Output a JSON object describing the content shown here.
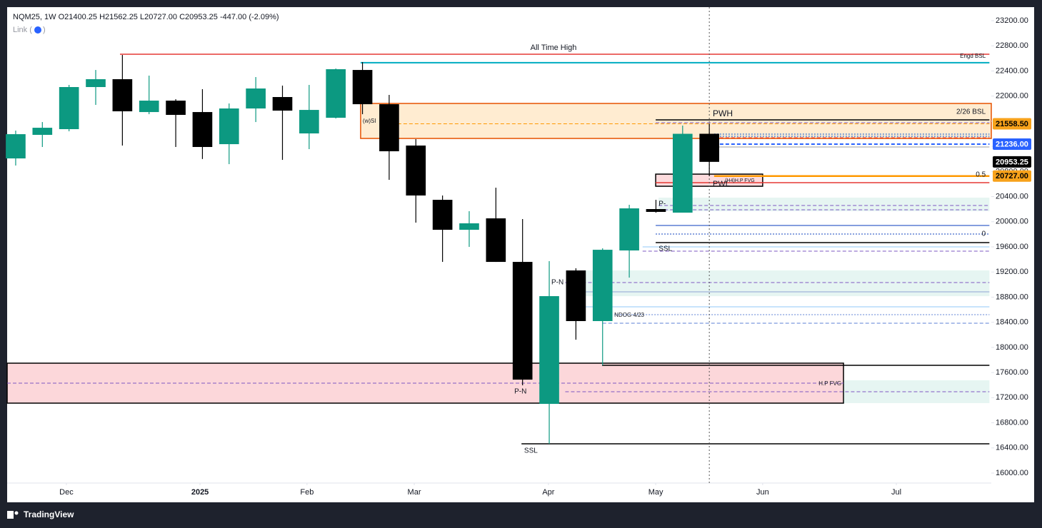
{
  "header": {
    "symbol": "NQM25, 1W",
    "ohlc": [
      {
        "key": "O",
        "value": "21400.25"
      },
      {
        "key": "H",
        "value": "21562.25"
      },
      {
        "key": "L",
        "value": "20727.00"
      },
      {
        "key": "C",
        "value": "20953.25"
      }
    ],
    "change": "-447.00 (-2.09%)",
    "link": "Link (",
    "link_end": ")"
  },
  "footer": {
    "brand": "TradingView"
  },
  "chart_data": {
    "type": "candlestick",
    "up_color": "#0c9981",
    "down_color": "#000000",
    "x": [
      0,
      1,
      2,
      3,
      4,
      5,
      6,
      7,
      8,
      9,
      10,
      11,
      12,
      13,
      14,
      15,
      16,
      17,
      18,
      19,
      20,
      21,
      22,
      23,
      24,
      25,
      26
    ],
    "open": [
      21008,
      21383,
      21474,
      22144,
      22269,
      21746,
      21928,
      21746,
      21235,
      21803,
      21985,
      21406,
      21655,
      22416,
      21871,
      21213,
      20349,
      19872,
      20054,
      19361,
      17101,
      19225,
      18419,
      19543,
      20202,
      20145,
      21400.25
    ],
    "high": [
      21451,
      21587,
      22178,
      22416,
      22655,
      22326,
      21951,
      22110,
      21883,
      22303,
      22167,
      22178,
      22439,
      22541,
      22019,
      21315,
      20418,
      20168,
      20542,
      20043,
      19373,
      19259,
      19577,
      20270,
      20349,
      21531,
      21562.25
    ],
    "low": [
      20895,
      21190,
      21440,
      21860,
      21213,
      21712,
      21190,
      20999,
      20917,
      21587,
      20985,
      21156,
      21644,
      21712,
      20667,
      19986,
      19361,
      19600,
      19361,
      17397,
      16465,
      18123,
      17715,
      19111,
      20145,
      20145,
      20727
    ],
    "close": [
      21394,
      21496,
      22144,
      22269,
      21758,
      21928,
      21701,
      21190,
      21803,
      22121,
      21769,
      21780,
      22428,
      21871,
      21122,
      20418,
      19872,
      19975,
      19361,
      17487,
      18816,
      18419,
      19554,
      20213,
      20157,
      21400,
      20953.25
    ],
    "xlim": [
      -0.32,
      36.57
    ],
    "xticks": [
      {
        "value": 1.9,
        "label": "Dec"
      },
      {
        "value": 6.91,
        "label": "2025"
      },
      {
        "value": 10.92,
        "label": "Feb"
      },
      {
        "value": 14.94,
        "label": "Mar"
      },
      {
        "value": 19.97,
        "label": "Apr"
      },
      {
        "value": 23.99,
        "label": "May"
      },
      {
        "value": 28.0,
        "label": "Jun"
      },
      {
        "value": 33.01,
        "label": "Jul"
      }
    ],
    "ylim": [
      15841,
      23416
    ],
    "yticks": [
      {
        "value": 16000,
        "label": "16000.00"
      },
      {
        "value": 16400,
        "label": "16400.00"
      },
      {
        "value": 16800,
        "label": "16800.00"
      },
      {
        "value": 17200,
        "label": "17200.00"
      },
      {
        "value": 17600,
        "label": "17600.00"
      },
      {
        "value": 18000,
        "label": "18000.00"
      },
      {
        "value": 18400,
        "label": "18400.00"
      },
      {
        "value": 18800,
        "label": "18800.00"
      },
      {
        "value": 19200,
        "label": "19200.00"
      },
      {
        "value": 19600,
        "label": "19600.00"
      },
      {
        "value": 20000,
        "label": "20000.00"
      },
      {
        "value": 20400,
        "label": "20400.00"
      },
      {
        "value": 20800,
        "label": "20800.00"
      },
      {
        "value": 21200,
        "label": "21200.00"
      },
      {
        "value": 21600,
        "label": "21600.00"
      },
      {
        "value": 22000,
        "label": "22000.00"
      },
      {
        "value": 22400,
        "label": "22400.00"
      },
      {
        "value": 22800,
        "label": "22800.00"
      },
      {
        "value": 23200,
        "label": "23200.00"
      }
    ],
    "zones": [
      {
        "top": 21883,
        "bottom": 21326,
        "from": 12.93,
        "to": 36.57,
        "fill": "rgba(255,152,0,0.18)",
        "stroke": "#e65100"
      },
      {
        "top": 20758,
        "bottom": 20565,
        "from": 23.99,
        "to": 28.0,
        "fill": "rgba(242,54,69,0.18)",
        "stroke": "#000000"
      },
      {
        "top": 20384,
        "bottom": 20168,
        "from": 24.1,
        "to": 36.5,
        "fill": "rgba(8,153,129,0.1)",
        "stroke": "none"
      },
      {
        "top": 19225,
        "bottom": 18816,
        "from": 21.37,
        "to": 36.5,
        "fill": "rgba(8,153,129,0.1)",
        "stroke": "none"
      },
      {
        "top": 17749,
        "bottom": 17113,
        "from": -0.32,
        "to": 31.03,
        "fill": "rgba(242,54,69,0.2)",
        "stroke": "#000000"
      },
      {
        "top": 17476,
        "bottom": 17113,
        "from": 31.03,
        "to": 36.5,
        "fill": "rgba(8,153,129,0.1)",
        "stroke": "none"
      }
    ],
    "levels": [
      {
        "price": 22666,
        "from": 3.91,
        "to": 36.5,
        "color": "#e53935",
        "style": "solid",
        "width": 1.5
      },
      {
        "price": 22531,
        "from": 12.93,
        "to": 36.5,
        "color": "#00acc1",
        "style": "solid",
        "width": 2
      },
      {
        "price": 21621,
        "from": 23.99,
        "to": 36.5,
        "color": "#000000",
        "style": "solid",
        "width": 1.5
      },
      {
        "price": 21576,
        "from": 23.99,
        "to": 36.5,
        "color": "#7e57c2",
        "style": "dashed",
        "width": 1
      },
      {
        "price": 21558.5,
        "from": 14.32,
        "to": 36.5,
        "color": "#ff9800",
        "style": "dashed",
        "width": 1
      },
      {
        "price": 21394,
        "from": 26.18,
        "to": 36.5,
        "color": "#7b9fd4",
        "style": "dotted",
        "width": 2
      },
      {
        "price": 21360,
        "from": 26.18,
        "to": 36.5,
        "color": "#7b9fd4",
        "style": "dotted",
        "width": 2
      },
      {
        "price": 21337,
        "from": 26.18,
        "to": 36.5,
        "color": "#e53935",
        "style": "dashed",
        "width": 1
      },
      {
        "price": 21236,
        "from": 26.18,
        "to": 36.5,
        "color": "#2962ff",
        "style": "dashed",
        "width": 2
      },
      {
        "price": 21190,
        "from": 26.18,
        "to": 36.5,
        "color": "#9e9e9e",
        "style": "solid",
        "width": 1
      },
      {
        "price": 20727,
        "from": 26.18,
        "to": 36.5,
        "color": "#ff9800",
        "style": "solid",
        "width": 2.5
      },
      {
        "price": 20622,
        "from": 23.99,
        "to": 36.5,
        "color": "#e53935",
        "style": "solid",
        "width": 1.5
      },
      {
        "price": 20259,
        "from": 24.1,
        "to": 36.5,
        "color": "#7e57c2",
        "style": "dashed",
        "width": 1
      },
      {
        "price": 20190,
        "from": 24.1,
        "to": 36.5,
        "color": "#7e57c2",
        "style": "dashed",
        "width": 1
      },
      {
        "price": 19941,
        "from": 23.99,
        "to": 36.5,
        "color": "#5b7fd4",
        "style": "solid",
        "width": 1.5
      },
      {
        "price": 19804,
        "from": 23.99,
        "to": 36.5,
        "color": "#5b7fd4",
        "style": "dotted",
        "width": 1.5
      },
      {
        "price": 19668,
        "from": 23.99,
        "to": 36.5,
        "color": "#000000",
        "style": "solid",
        "width": 1.5
      },
      {
        "price": 19600,
        "from": 23.5,
        "to": 36.5,
        "color": "#90caf9",
        "style": "solid",
        "width": 1
      },
      {
        "price": 19532,
        "from": 23.5,
        "to": 36.5,
        "color": "#7e57c2",
        "style": "dashed",
        "width": 1
      },
      {
        "price": 19032,
        "from": 20.6,
        "to": 36.5,
        "color": "#7e57c2",
        "style": "dashed",
        "width": 1
      },
      {
        "price": 18884,
        "from": 21.37,
        "to": 36.5,
        "color": "#90a4d4",
        "style": "solid",
        "width": 1
      },
      {
        "price": 18646,
        "from": 21.37,
        "to": 36.5,
        "color": "#90caf9",
        "style": "solid",
        "width": 1
      },
      {
        "price": 18521,
        "from": 22.44,
        "to": 36.5,
        "color": "#5b7fd4",
        "style": "dotted",
        "width": 1
      },
      {
        "price": 18385,
        "from": 22.0,
        "to": 36.5,
        "color": "#5b7fd4",
        "style": "dashed",
        "width": 1
      },
      {
        "price": 17715,
        "from": 21.98,
        "to": 36.5,
        "color": "#000000",
        "style": "solid",
        "width": 1.5
      },
      {
        "price": 17431,
        "from": -0.32,
        "to": 31.03,
        "color": "#7e57c2",
        "style": "dashed",
        "width": 1
      },
      {
        "price": 17294,
        "from": 20.6,
        "to": 36.5,
        "color": "#7e57c2",
        "style": "dashed",
        "width": 1
      },
      {
        "price": 16465,
        "from": 18.96,
        "to": 36.5,
        "color": "#000000",
        "style": "solid",
        "width": 1.5
      }
    ],
    "annotations": [
      {
        "text": "All Time High",
        "x": 20.16,
        "price": 22768,
        "anchor": "middle",
        "size": 11
      },
      {
        "text": "Engd BSL",
        "x": 36.36,
        "price": 22632,
        "anchor": "end",
        "size": 8
      },
      {
        "text": "(w)SI",
        "x": 13.01,
        "price": 21599,
        "anchor": "start",
        "size": 8
      },
      {
        "text": "PWH",
        "x": 26.13,
        "price": 21712,
        "anchor": "start",
        "size": 12
      },
      {
        "text": "2/26 BSL",
        "x": 36.36,
        "price": 21746,
        "anchor": "end",
        "size": 10
      },
      {
        "text": "(H4)H.P FVG",
        "x": 26.59,
        "price": 20656,
        "anchor": "start",
        "size": 7
      },
      {
        "text": "0.5",
        "x": 36.36,
        "price": 20747,
        "anchor": "end",
        "size": 10
      },
      {
        "text": "PWL",
        "x": 26.13,
        "price": 20599,
        "anchor": "start",
        "size": 11
      },
      {
        "text": "P-",
        "x": 24.1,
        "price": 20281,
        "anchor": "start",
        "size": 10
      },
      {
        "text": "0",
        "x": 36.36,
        "price": 19804,
        "anchor": "end",
        "size": 10
      },
      {
        "text": "SSL",
        "x": 24.1,
        "price": 19566,
        "anchor": "start",
        "size": 10
      },
      {
        "text": "P-N",
        "x": 20.08,
        "price": 19032,
        "anchor": "start",
        "size": 10
      },
      {
        "text": "NDOG 4/23",
        "x": 22.44,
        "price": 18509,
        "anchor": "start",
        "size": 8
      },
      {
        "text": "H.P FVG",
        "x": 30.95,
        "price": 17420,
        "anchor": "end",
        "size": 8
      },
      {
        "text": "P-N",
        "x": 18.69,
        "price": 17294,
        "anchor": "start",
        "size": 10
      },
      {
        "text": "SSL",
        "x": 19.06,
        "price": 16352,
        "anchor": "start",
        "size": 10
      }
    ],
    "crosshair_x": 26,
    "price_tags": [
      {
        "value": 21558.5,
        "label": "21558.50",
        "color": "#f7a21b",
        "text_color": "#000000"
      },
      {
        "value": 21236,
        "label": "21236.00",
        "color": "#2962ff",
        "text_color": "#ffffff"
      },
      {
        "value": 20953.25,
        "label": "20953.25",
        "color": "#000000",
        "text_color": "#ffffff"
      },
      {
        "value": 20727,
        "label": "20727.00",
        "color": "#f7a21b",
        "text_color": "#000000"
      }
    ]
  }
}
